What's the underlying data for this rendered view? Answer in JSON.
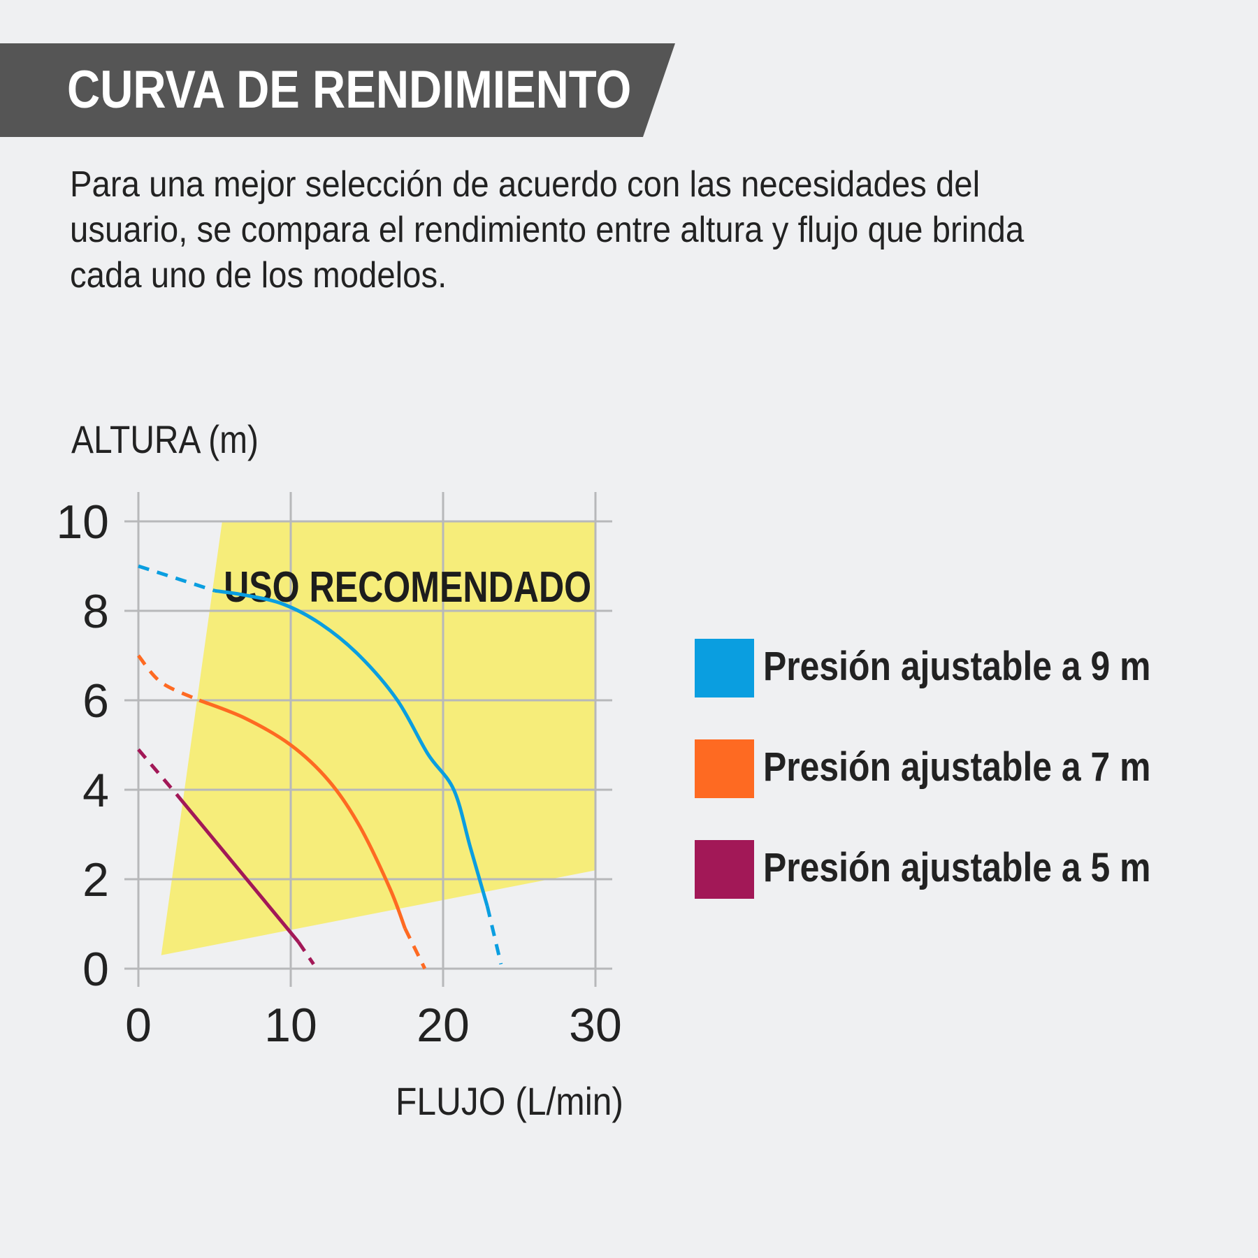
{
  "header": {
    "title": "CURVA DE RENDIMIENTO",
    "banner_color": "#555555"
  },
  "description": "Para una mejor selección de acuerdo con las necesidades del usuario, se compara el rendimiento entre altura y flujo que brinda cada uno de los modelos.",
  "chart_data": {
    "type": "line",
    "ylabel": "ALTURA (m)",
    "xlabel": "FLUJO (L/min)",
    "xlim": [
      0,
      30
    ],
    "ylim": [
      0,
      10
    ],
    "x_ticks": [
      "0",
      "10",
      "20",
      "30"
    ],
    "y_ticks": [
      "0",
      "2",
      "4",
      "6",
      "8",
      "10"
    ],
    "grid": true,
    "region": {
      "label": "USO RECOMENDADO",
      "color": "#f6ed7a",
      "polygon": [
        [
          5.5,
          10
        ],
        [
          30,
          10
        ],
        [
          30,
          2.2
        ],
        [
          1.5,
          0.3
        ]
      ]
    },
    "series": [
      {
        "name": "Presión ajustable a 9 m",
        "color": "#0a9ee0",
        "dashed_start": [
          [
            0,
            9
          ],
          [
            5,
            8.45
          ]
        ],
        "solid": [
          [
            5,
            8.45
          ],
          [
            7,
            8.35
          ],
          [
            9.5,
            8.15
          ],
          [
            12,
            7.7
          ],
          [
            14.5,
            7.0
          ],
          [
            17,
            6.0
          ],
          [
            19,
            4.8
          ],
          [
            20.7,
            4.0
          ],
          [
            21.8,
            2.7
          ],
          [
            22.9,
            1.4
          ]
        ],
        "dashed_end": [
          [
            22.9,
            1.4
          ],
          [
            23.8,
            0.1
          ]
        ]
      },
      {
        "name": "Presión ajustable a 7 m",
        "color": "#fe6a22",
        "dashed_start": [
          [
            0,
            7
          ],
          [
            1.5,
            6.4
          ],
          [
            4,
            6.0
          ]
        ],
        "solid": [
          [
            4,
            6.0
          ],
          [
            7,
            5.6
          ],
          [
            10,
            5.0
          ],
          [
            12.5,
            4.2
          ],
          [
            14.5,
            3.2
          ],
          [
            16.5,
            1.8
          ],
          [
            17.5,
            0.9
          ]
        ],
        "dashed_end": [
          [
            17.5,
            0.9
          ],
          [
            18.8,
            0.0
          ]
        ]
      },
      {
        "name": "Presión ajustable a 5 m",
        "color": "#a21857",
        "dashed_start": [
          [
            0,
            4.9
          ],
          [
            2.5,
            3.9
          ]
        ],
        "solid": [
          [
            2.5,
            3.9
          ],
          [
            10.5,
            0.6
          ]
        ],
        "dashed_end": [
          [
            10.5,
            0.6
          ],
          [
            11.5,
            0.1
          ]
        ]
      }
    ]
  },
  "legend": [
    {
      "label": "Presión ajustable a 9 m",
      "color": "#0a9ee0"
    },
    {
      "label": "Presión ajustable a 7 m",
      "color": "#fe6a22"
    },
    {
      "label": "Presión ajustable a 5 m",
      "color": "#a21857"
    }
  ]
}
